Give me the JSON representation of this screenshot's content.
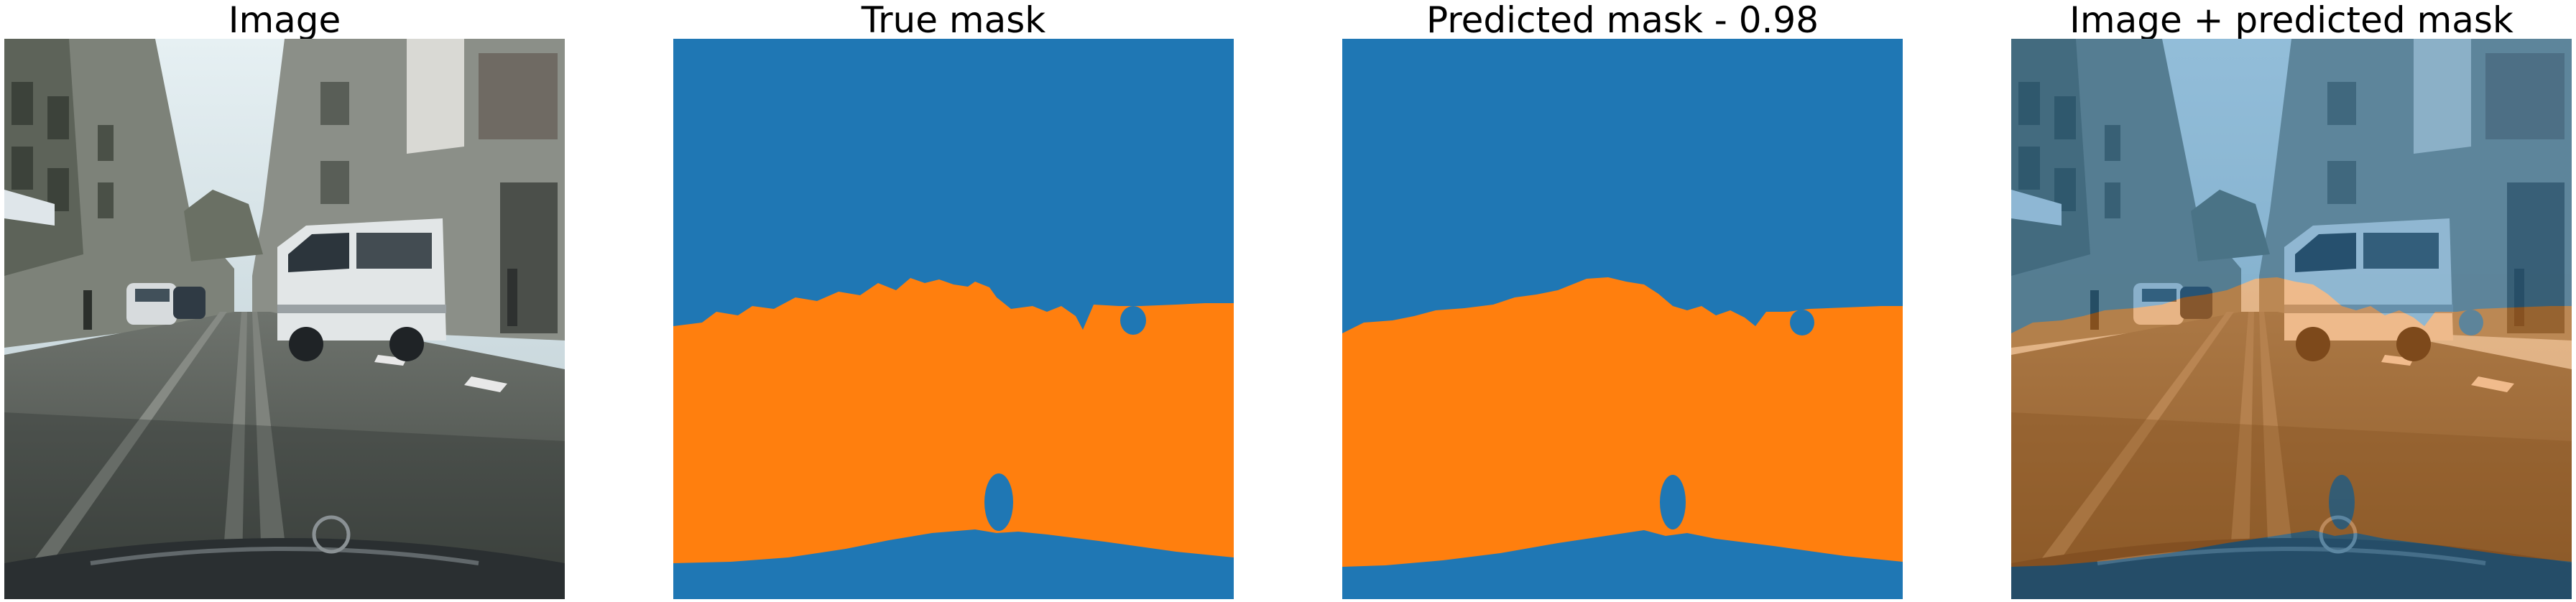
{
  "panels": [
    {
      "title": "Image"
    },
    {
      "title": "True mask"
    },
    {
      "title": "Predicted mask - 0.98"
    },
    {
      "title": "Image + predicted mask"
    }
  ],
  "colors": {
    "background_class": "#1f77b4",
    "road_class": "#ff7f0e",
    "sky": "#cfe3ec",
    "road_surface": "#5c615c",
    "building": "#8a8f86",
    "van": "#dfe3e3",
    "overlay_blue": "#2d6f99",
    "overlay_orange": "#b5732c"
  }
}
